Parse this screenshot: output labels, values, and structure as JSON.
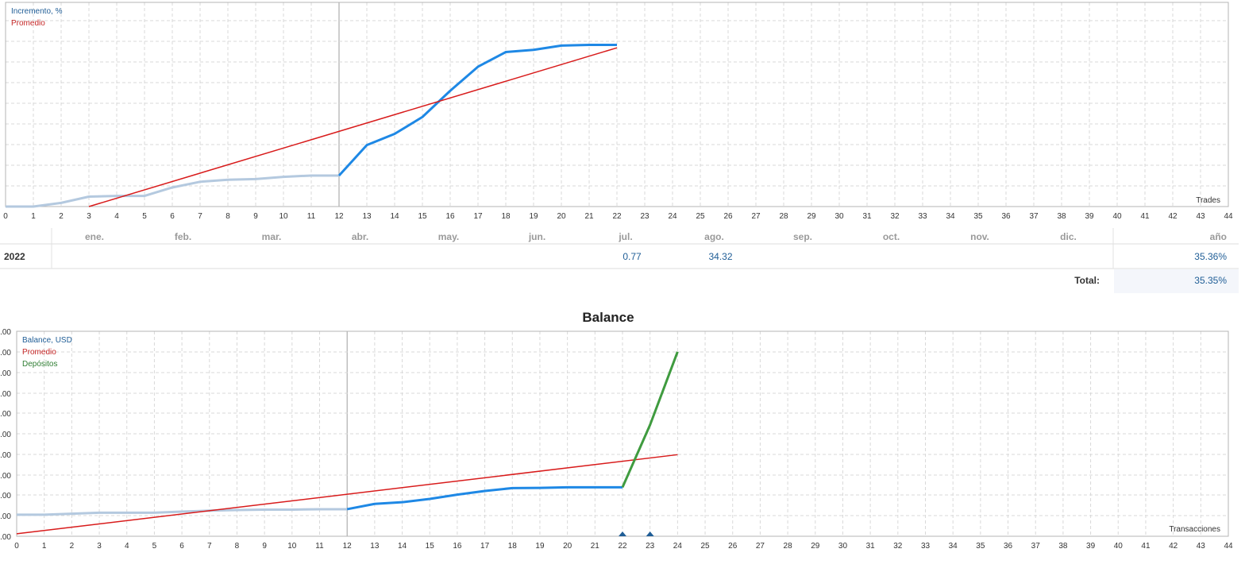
{
  "colors": {
    "growth_line": "#1e88e5",
    "growth_line_light": "#b4c9df",
    "average_line": "#d81b1b",
    "deposit_line": "#3f9b3f",
    "value_text": "#1f5d96",
    "grid": "#d9d9d9",
    "frame": "#b5b5b5"
  },
  "growth_chart": {
    "legend": [
      "Incremento, %",
      "Promedio"
    ],
    "corner_label": "Trades"
  },
  "monthly_table": {
    "months": [
      "ene.",
      "feb.",
      "mar.",
      "abr.",
      "may.",
      "jun.",
      "jul.",
      "ago.",
      "sep.",
      "oct.",
      "nov.",
      "dic."
    ],
    "year_col_label": "año",
    "rows": [
      {
        "year": "2022",
        "values": [
          "",
          "",
          "",
          "",
          "",
          "",
          "0.77",
          "34.32",
          "",
          "",
          "",
          ""
        ],
        "total": "35.36%"
      }
    ],
    "total_label": "Total:",
    "total_value": "35.35%"
  },
  "balance_chart": {
    "title": "Balance",
    "legend": [
      "Balance, USD",
      "Promedio",
      "Depósitos"
    ],
    "corner_label": "Transacciones",
    "y_tick_labels": [
      ".00",
      ".00",
      ".00",
      ".00",
      ".00",
      ".00",
      ".00",
      ".00",
      ".00",
      ".00",
      ".00"
    ]
  },
  "chart_data": [
    {
      "type": "line",
      "xlabel": "Trades",
      "xlim": [
        0,
        44
      ],
      "x_ticks": [
        0,
        1,
        2,
        3,
        4,
        5,
        6,
        7,
        8,
        9,
        10,
        11,
        12,
        13,
        14,
        15,
        16,
        17,
        18,
        19,
        20,
        21,
        22,
        23,
        24,
        25,
        26,
        27,
        28,
        29,
        30,
        31,
        32,
        33,
        34,
        35,
        36,
        37,
        38,
        39,
        40,
        41,
        42,
        43,
        44
      ],
      "ylim": [
        0,
        100
      ],
      "grid": true,
      "legend_position": "top-left",
      "series": [
        {
          "name": "Incremento, %",
          "x": [
            0,
            1,
            2,
            3,
            4,
            5,
            6,
            7,
            8,
            9,
            10,
            11,
            12,
            13,
            14,
            15,
            16,
            17,
            18,
            19,
            20,
            21,
            22
          ],
          "y": [
            0.0,
            0.0,
            2.0,
            5.4,
            5.8,
            5.8,
            10.4,
            13.5,
            14.6,
            15.0,
            16.2,
            16.9,
            16.9,
            33.5,
            39.6,
            48.8,
            63.1,
            76.2,
            84.2,
            85.4,
            87.7,
            88.1,
            88.1
          ]
        },
        {
          "name": "Promedio",
          "x": [
            3,
            22
          ],
          "y": [
            0.0,
            86.5
          ]
        }
      ]
    },
    {
      "type": "line",
      "title": "Balance",
      "xlabel": "Transacciones",
      "xlim": [
        0,
        44
      ],
      "x_ticks": [
        0,
        1,
        2,
        3,
        4,
        5,
        6,
        7,
        8,
        9,
        10,
        11,
        12,
        13,
        14,
        15,
        16,
        17,
        18,
        19,
        20,
        21,
        22,
        23,
        24,
        25,
        26,
        27,
        28,
        29,
        30,
        31,
        32,
        33,
        34,
        35,
        36,
        37,
        38,
        39,
        40,
        41,
        42,
        43,
        44
      ],
      "ylim": [
        0,
        10
      ],
      "grid": true,
      "legend_position": "top-left",
      "series": [
        {
          "name": "Balance, USD",
          "x": [
            0,
            1,
            2,
            3,
            4,
            5,
            6,
            7,
            8,
            9,
            10,
            11,
            12,
            13,
            14,
            15,
            16,
            17,
            18,
            19,
            20,
            21,
            22
          ],
          "y": [
            1.05,
            1.05,
            1.1,
            1.15,
            1.15,
            1.15,
            1.2,
            1.25,
            1.28,
            1.3,
            1.3,
            1.32,
            1.32,
            1.58,
            1.66,
            1.82,
            2.03,
            2.21,
            2.35,
            2.36,
            2.39,
            2.39,
            2.39
          ]
        },
        {
          "name": "Promedio",
          "x": [
            0,
            24
          ],
          "y": [
            0.12,
            3.98
          ]
        },
        {
          "name": "Depósitos",
          "x": [
            22,
            23,
            24
          ],
          "y": [
            2.39,
            5.43,
            9.0
          ]
        }
      ],
      "deposit_markers_x": [
        22,
        23
      ]
    }
  ]
}
